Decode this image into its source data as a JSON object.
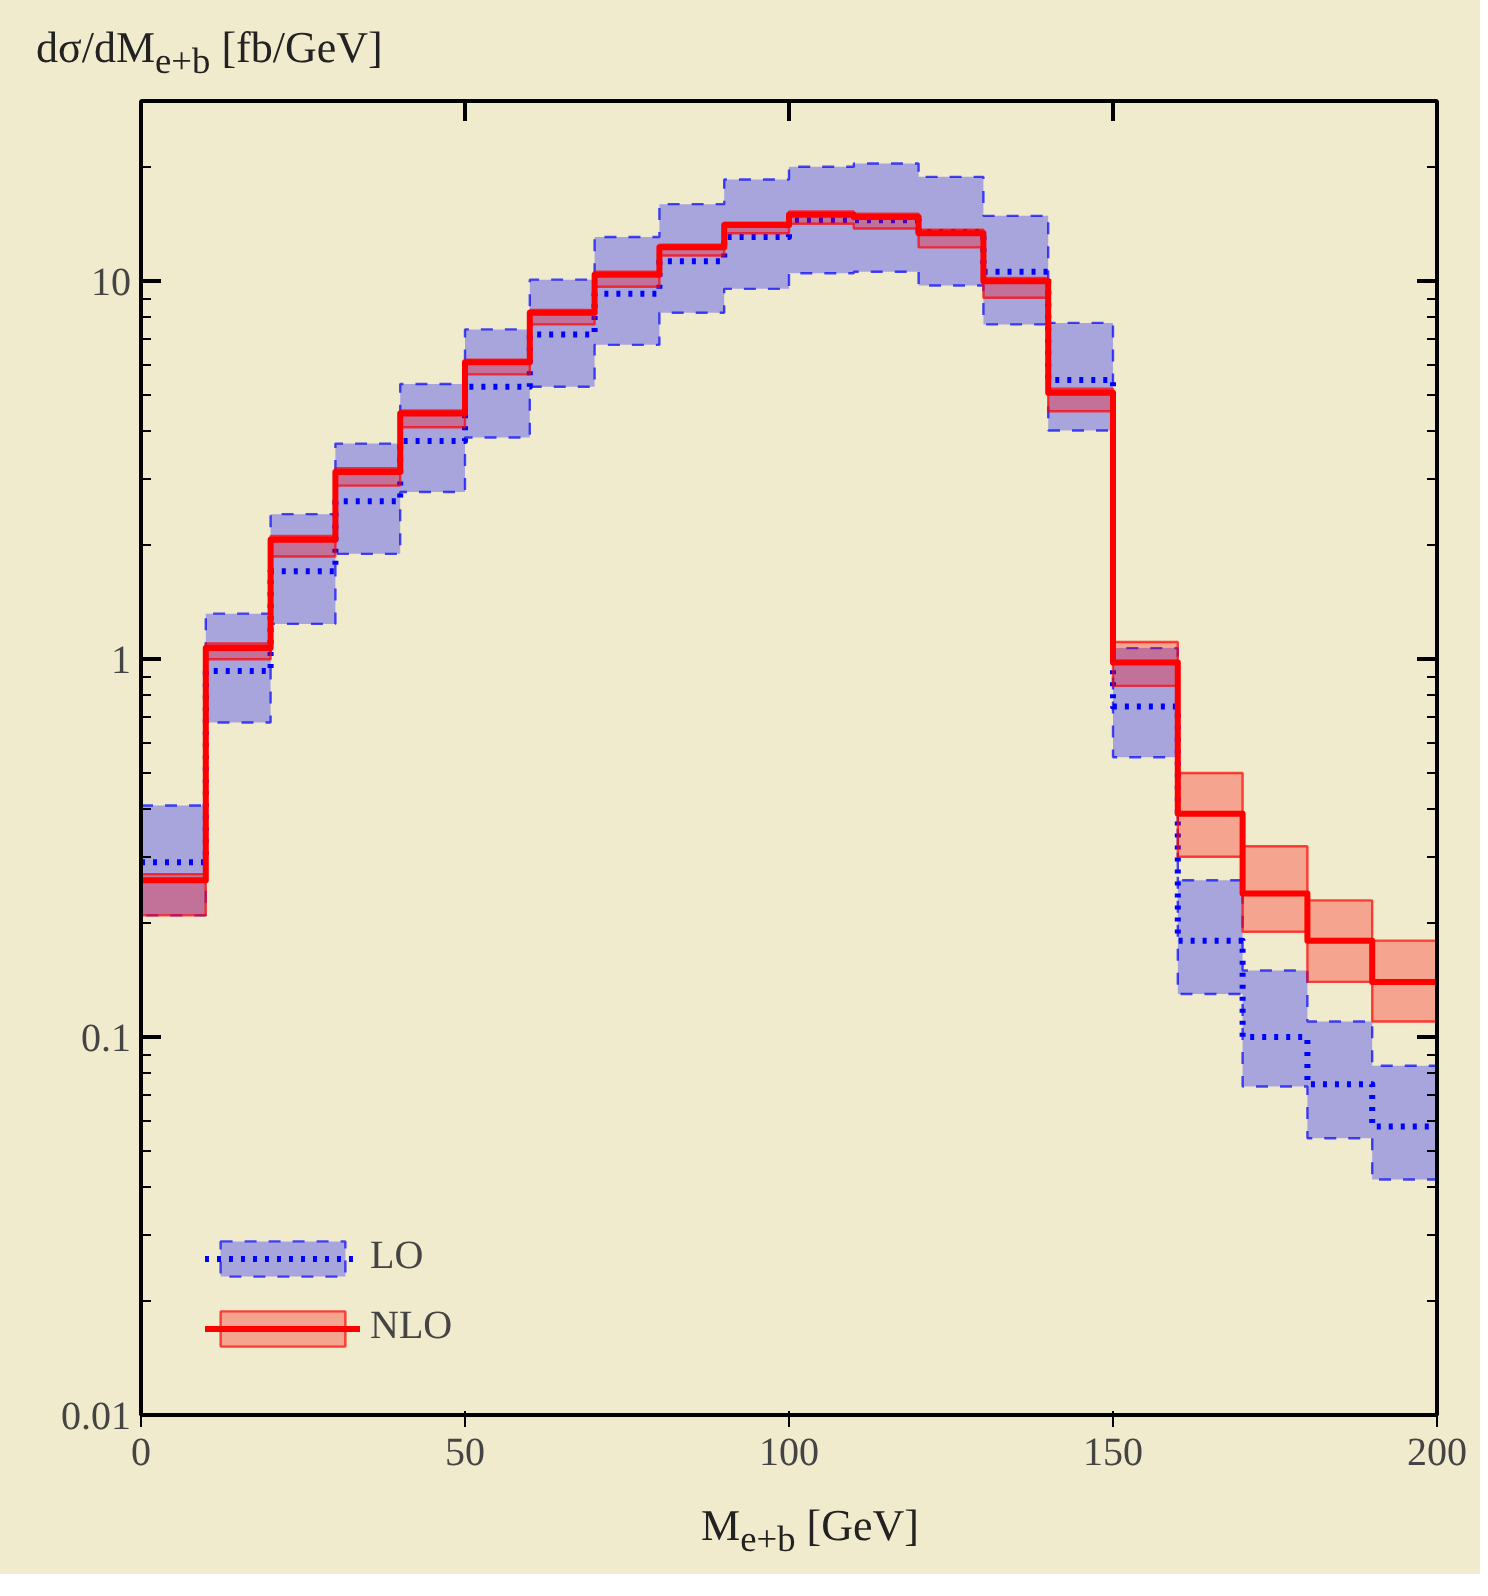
{
  "chart_data": {
    "type": "step",
    "xlabel": "M$_{e+b}$ [GeV]",
    "ylabel": "dσ/dM$_{e+b}$ [fb/GeV]",
    "x": [
      0,
      10,
      20,
      30,
      40,
      50,
      60,
      70,
      80,
      90,
      100,
      110,
      120,
      130,
      140,
      150,
      160,
      170,
      180,
      190,
      200
    ],
    "series": [
      {
        "name": "LO",
        "color": "#0000ff",
        "line_style": "dotted",
        "values": [
          0.29,
          0.93,
          1.71,
          2.62,
          3.78,
          5.26,
          7.23,
          9.27,
          11.3,
          13.1,
          14.5,
          14.5,
          13.5,
          10.6,
          5.48,
          0.75,
          0.18,
          0.1,
          0.075,
          0.058,
          0.058
        ],
        "lower": [
          0.21,
          0.68,
          1.24,
          1.9,
          2.77,
          3.86,
          5.26,
          6.79,
          8.26,
          9.55,
          10.5,
          10.6,
          9.75,
          7.69,
          4.03,
          0.55,
          0.13,
          0.074,
          0.054,
          0.042,
          0.042
        ],
        "upper": [
          0.41,
          1.32,
          2.42,
          3.72,
          5.35,
          7.46,
          10.1,
          13.1,
          16.0,
          18.6,
          20.1,
          20.5,
          18.9,
          14.9,
          7.76,
          1.07,
          0.26,
          0.15,
          0.11,
          0.084,
          0.084
        ]
      },
      {
        "name": "NLO",
        "color": "#ff0000",
        "line_style": "solid",
        "values": [
          0.26,
          1.07,
          2.07,
          3.13,
          4.47,
          6.11,
          8.26,
          10.4,
          12.3,
          14.1,
          15.0,
          14.8,
          13.4,
          10.0,
          5.07,
          0.98,
          0.39,
          0.24,
          0.18,
          0.14,
          0.14
        ],
        "lower": [
          0.21,
          1.0,
          1.87,
          2.88,
          4.11,
          5.67,
          7.69,
          9.67,
          11.7,
          13.4,
          14.2,
          13.8,
          12.3,
          9.05,
          4.53,
          0.85,
          0.3,
          0.19,
          0.14,
          0.11,
          0.11
        ],
        "upper": [
          0.27,
          1.1,
          2.12,
          3.2,
          4.55,
          6.2,
          8.4,
          10.6,
          12.5,
          14.3,
          15.3,
          15.1,
          13.7,
          10.2,
          5.2,
          1.11,
          0.5,
          0.32,
          0.23,
          0.18,
          0.18
        ]
      }
    ],
    "xlim": [
      0,
      200
    ],
    "xticks": [
      0,
      50,
      100,
      150,
      200
    ],
    "ylim": [
      0.01,
      30
    ],
    "yticks": [
      0.01,
      0.1,
      1,
      10
    ],
    "log": true,
    "grid": false,
    "legend": "bottom left"
  }
}
